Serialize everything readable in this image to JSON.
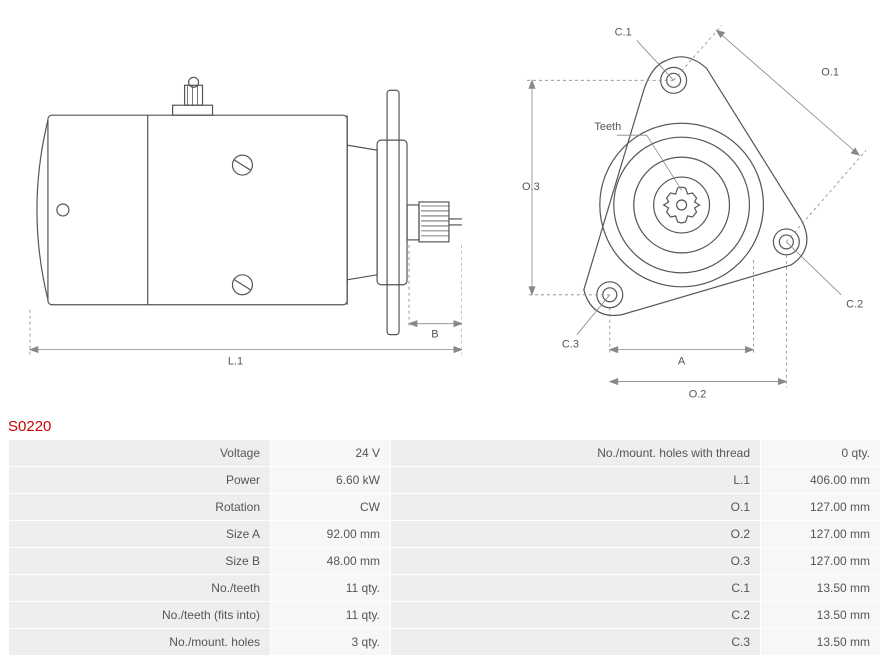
{
  "product_code": "S0220",
  "diagram": {
    "side_view": {
      "labels": {
        "L1": "L.1",
        "B": "B"
      },
      "stroke": "#555555",
      "stroke_width": 1,
      "dim_stroke": "#888888"
    },
    "front_view": {
      "labels": {
        "A": "A",
        "O1": "O.1",
        "O2": "O.2",
        "O3": "O.3",
        "C1": "C.1",
        "C2": "C.2",
        "C3": "C.3",
        "Teeth": "Teeth"
      },
      "stroke": "#555555",
      "stroke_width": 1,
      "dim_stroke": "#888888"
    }
  },
  "specs_left": [
    {
      "label": "Voltage",
      "value": "24 V"
    },
    {
      "label": "Power",
      "value": "6.60 kW"
    },
    {
      "label": "Rotation",
      "value": "CW"
    },
    {
      "label": "Size A",
      "value": "92.00 mm"
    },
    {
      "label": "Size B",
      "value": "48.00 mm"
    },
    {
      "label": "No./teeth",
      "value": "11 qty."
    },
    {
      "label": "No./teeth (fits into)",
      "value": "11 qty."
    },
    {
      "label": "No./mount. holes",
      "value": "3 qty."
    }
  ],
  "specs_right": [
    {
      "label": "No./mount. holes with thread",
      "value": "0 qty."
    },
    {
      "label": "L.1",
      "value": "406.00 mm"
    },
    {
      "label": "O.1",
      "value": "127.00 mm"
    },
    {
      "label": "O.2",
      "value": "127.00 mm"
    },
    {
      "label": "O.3",
      "value": "127.00 mm"
    },
    {
      "label": "C.1",
      "value": "13.50 mm"
    },
    {
      "label": "C.2",
      "value": "13.50 mm"
    },
    {
      "label": "C.3",
      "value": "13.50 mm"
    }
  ]
}
